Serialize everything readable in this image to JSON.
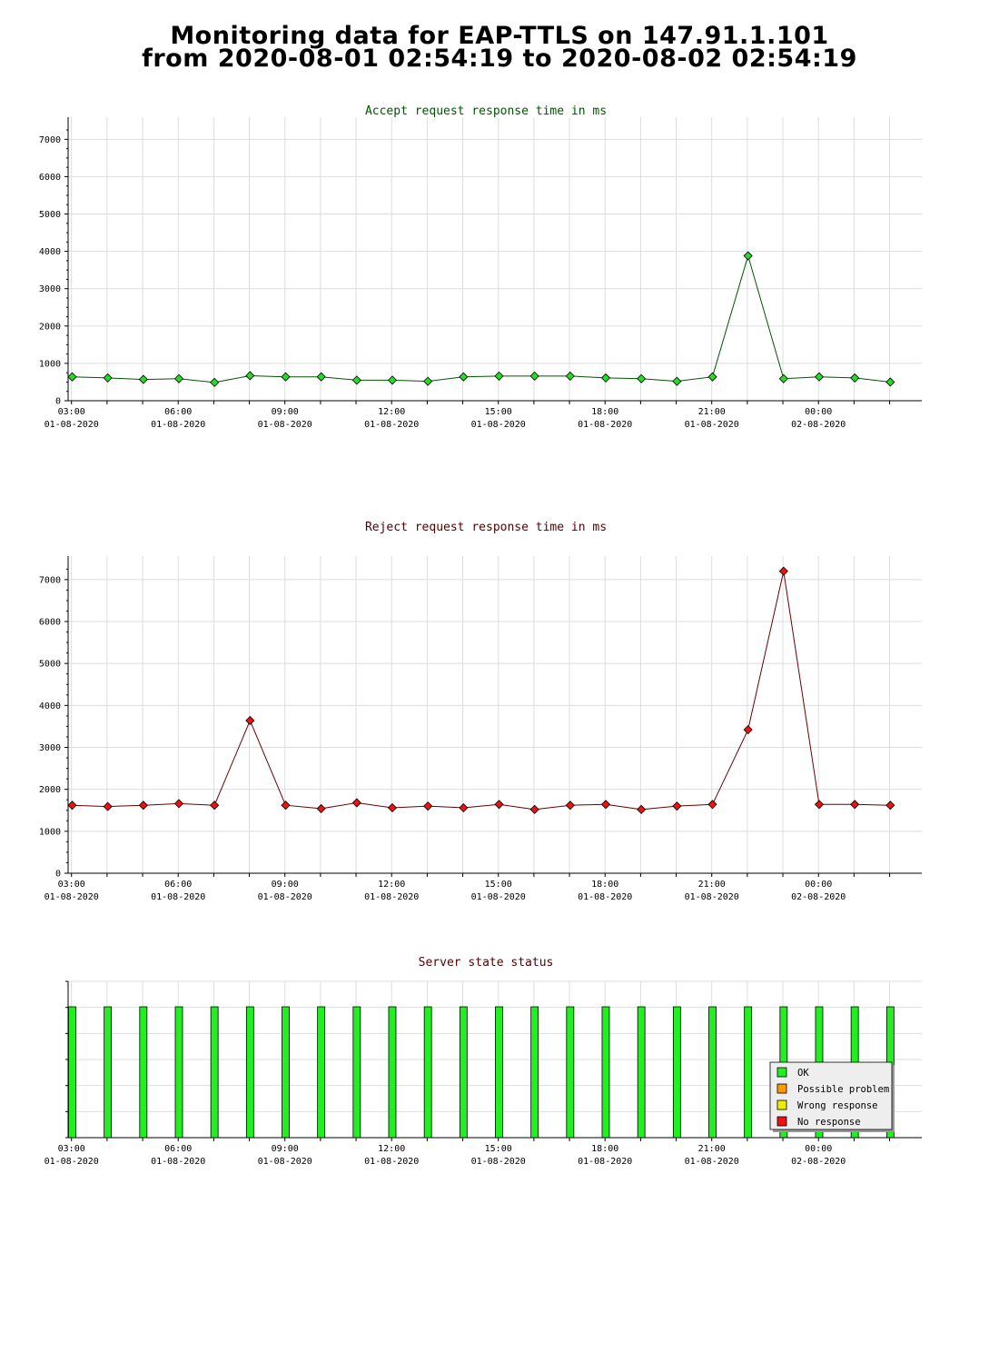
{
  "page": {
    "title_line1": "Monitoring data for EAP-TTLS on 147.91.1.101",
    "title_line2": "from 2020-08-01 02:54:19 to 2020-08-02 02:54:19"
  },
  "x_axis_ticks": [
    {
      "time": "03:00",
      "date": "01-08-2020"
    },
    {
      "time": "06:00",
      "date": "01-08-2020"
    },
    {
      "time": "09:00",
      "date": "01-08-2020"
    },
    {
      "time": "12:00",
      "date": "01-08-2020"
    },
    {
      "time": "15:00",
      "date": "01-08-2020"
    },
    {
      "time": "18:00",
      "date": "01-08-2020"
    },
    {
      "time": "21:00",
      "date": "01-08-2020"
    },
    {
      "time": "00:00",
      "date": "02-08-2020"
    }
  ],
  "chart_data": [
    {
      "type": "line",
      "title": "Accept request response time in ms",
      "title_color": "#005500",
      "ylim": [
        0,
        7300
      ],
      "yticks": [
        0,
        1000,
        2000,
        3000,
        4000,
        5000,
        6000,
        7000
      ],
      "grid": true,
      "series": [
        {
          "line_color": "#005500",
          "marker_color": "#22dd22",
          "x_hours": [
            3.02,
            4.02,
            5.02,
            6.02,
            7.02,
            8.02,
            9.02,
            10.02,
            11.02,
            12.02,
            13.02,
            14.02,
            15.02,
            16.02,
            17.02,
            18.02,
            19.02,
            20.02,
            21.02,
            22.02,
            23.02,
            24.02,
            25.02,
            26.02
          ],
          "values": [
            640,
            610,
            570,
            590,
            490,
            670,
            640,
            640,
            550,
            550,
            520,
            640,
            660,
            660,
            660,
            610,
            590,
            520,
            640,
            3880,
            590,
            640,
            610,
            500
          ]
        }
      ]
    },
    {
      "type": "line",
      "title": "Reject request response time in ms",
      "title_color": "#550000",
      "ylim": [
        0,
        7300
      ],
      "yticks": [
        0,
        1000,
        2000,
        3000,
        4000,
        5000,
        6000,
        7000
      ],
      "grid": true,
      "series": [
        {
          "line_color": "#660000",
          "marker_color": "#ee1111",
          "x_hours": [
            3.02,
            4.02,
            5.02,
            6.02,
            7.02,
            8.02,
            9.02,
            10.02,
            11.02,
            12.02,
            13.02,
            14.02,
            15.02,
            16.02,
            17.02,
            18.02,
            19.02,
            20.02,
            21.02,
            22.02,
            23.02,
            24.02,
            25.02,
            26.02
          ],
          "values": [
            1620,
            1590,
            1620,
            1660,
            1620,
            3640,
            1620,
            1540,
            1680,
            1560,
            1600,
            1560,
            1640,
            1520,
            1620,
            1640,
            1520,
            1600,
            1640,
            3420,
            7200,
            1640,
            1640,
            1620
          ]
        }
      ]
    },
    {
      "type": "bar",
      "title": "Server state status",
      "title_color": "#550000",
      "grid": true,
      "states": [
        {
          "label": "OK",
          "color": "#22ee22"
        },
        {
          "label": "Possible problem",
          "color": "#ff9900"
        },
        {
          "label": "Wrong response",
          "color": "#eeee00"
        },
        {
          "label": "No response",
          "color": "#ee1111"
        }
      ],
      "legend_position": "bottom-right",
      "x_hours": [
        3.02,
        4.02,
        5.02,
        6.02,
        7.02,
        8.02,
        9.02,
        10.02,
        11.02,
        12.02,
        13.02,
        14.02,
        15.02,
        16.02,
        17.02,
        18.02,
        19.02,
        20.02,
        21.02,
        22.02,
        23.02,
        24.02,
        25.02,
        26.02
      ],
      "status": [
        "OK",
        "OK",
        "OK",
        "OK",
        "OK",
        "OK",
        "OK",
        "OK",
        "OK",
        "OK",
        "OK",
        "OK",
        "OK",
        "OK",
        "OK",
        "OK",
        "OK",
        "OK",
        "OK",
        "OK",
        "OK",
        "OK",
        "OK",
        "OK"
      ]
    }
  ]
}
